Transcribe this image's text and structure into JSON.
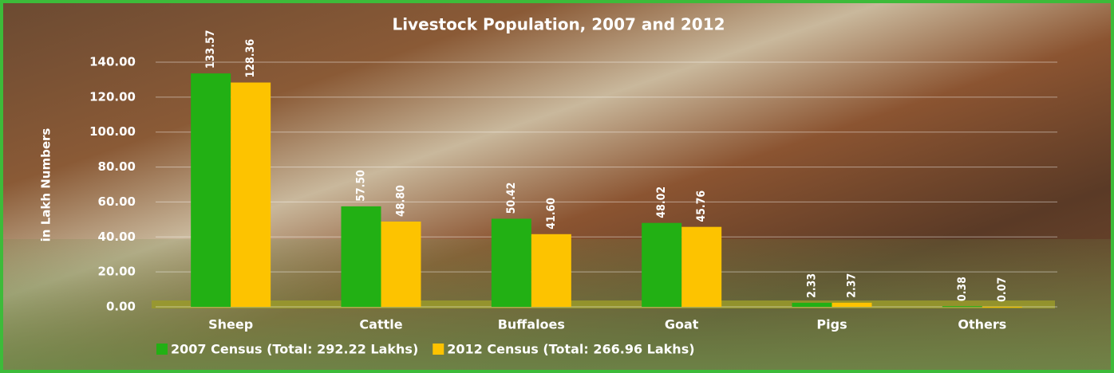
{
  "chart_data": {
    "type": "bar",
    "title": "Livestock Population,  2007 and 2012",
    "y_label": "in Lakh Numbers",
    "categories": [
      "Sheep",
      "Cattle",
      "Buffaloes",
      "Goat",
      "Pigs",
      "Others"
    ],
    "series": [
      {
        "name": "2007 Census (Total: 292.22 Lakhs)",
        "color": "#22b014",
        "values": [
          133.57,
          57.5,
          50.42,
          48.02,
          2.33,
          0.38
        ],
        "value_labels": [
          "133.57",
          "57.50",
          "50.42",
          "48.02",
          "2.33",
          "0.38"
        ]
      },
      {
        "name": "2012 Census (Total: 266.96 Lakhs)",
        "color": "#fdc300",
        "values": [
          128.36,
          48.8,
          41.6,
          45.76,
          2.37,
          0.07
        ],
        "value_labels": [
          "128.36",
          "48.80",
          "41.60",
          "45.76",
          "2.37",
          "0.07"
        ]
      }
    ],
    "ylim": [
      0,
      140
    ],
    "yticks": [
      {
        "value": 0,
        "label": "0.00"
      },
      {
        "value": 20,
        "label": "20.00"
      },
      {
        "value": 40,
        "label": "40.00"
      },
      {
        "value": 60,
        "label": "60.00"
      },
      {
        "value": 80,
        "label": "80.00"
      },
      {
        "value": 100,
        "label": "100.00"
      },
      {
        "value": 120,
        "label": "120.00"
      },
      {
        "value": 140,
        "label": "140.00"
      }
    ],
    "grid": true
  }
}
